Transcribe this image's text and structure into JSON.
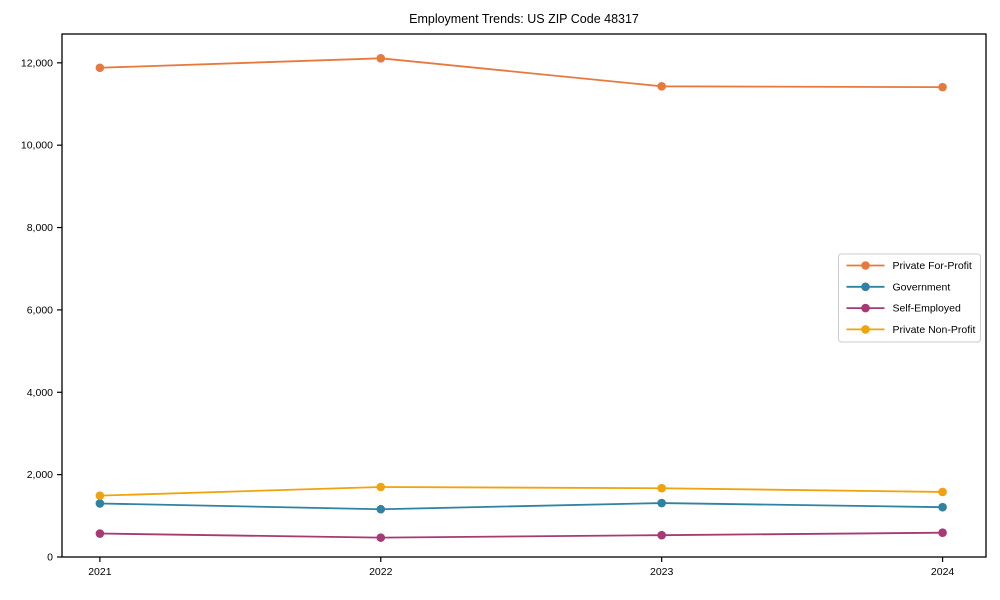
{
  "page": {
    "background": "#ffffff",
    "frame_color": "#000000",
    "tick_color": "#000000",
    "legend_border_color": "#cccccc",
    "legend_background": "#ffffff"
  },
  "chart_data": {
    "type": "line",
    "title": "Employment Trends: US ZIP Code 48317",
    "xlabel": "",
    "ylabel": "",
    "x": [
      2021,
      2022,
      2023,
      2024
    ],
    "x_tick_labels": [
      "2021",
      "2022",
      "2023",
      "2024"
    ],
    "yticks": [
      0,
      2000,
      4000,
      6000,
      8000,
      10000,
      12000
    ],
    "ytick_labels": [
      "0",
      "2,000",
      "4,000",
      "6,000",
      "8,000",
      "10,000",
      "12,000"
    ],
    "ylim": [
      0,
      12700
    ],
    "grid": false,
    "legend_position": "right-middle",
    "series": [
      {
        "name": "Private For-Profit",
        "color": "#e8793d",
        "values": [
          11880,
          12110,
          11430,
          11410
        ]
      },
      {
        "name": "Government",
        "color": "#2f82a2",
        "values": [
          1300,
          1160,
          1310,
          1210
        ]
      },
      {
        "name": "Self-Employed",
        "color": "#a63a72",
        "values": [
          570,
          470,
          530,
          590
        ]
      },
      {
        "name": "Private Non-Profit",
        "color": "#f0a30c",
        "values": [
          1490,
          1700,
          1670,
          1580
        ]
      }
    ]
  }
}
